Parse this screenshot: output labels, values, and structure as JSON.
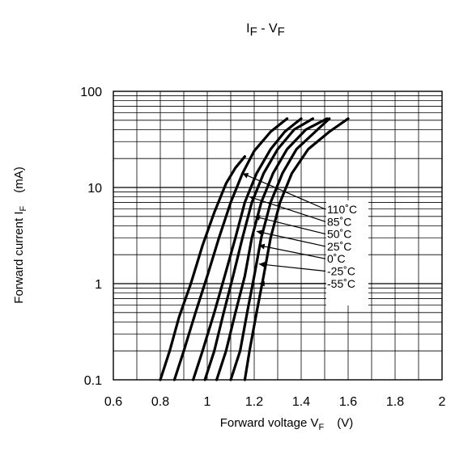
{
  "chart_data": {
    "type": "line",
    "title": {
      "main": "I",
      "main_sub": "F",
      "sep": " - V",
      "sep_sub": "F"
    },
    "xlabel": {
      "main": "Forward voltage   V",
      "sub": "F",
      "unit": "(V)"
    },
    "ylabel": {
      "main": "Forward current   I",
      "sub": "F",
      "unit": "(mA)"
    },
    "xlim": [
      0.6,
      2.0
    ],
    "ylim": [
      0.1,
      100
    ],
    "yscale": "log",
    "grid": true,
    "x_ticks": [
      "0.6",
      "0.8",
      "1",
      "1.2",
      "1.4",
      "1.6",
      "1.8",
      "2"
    ],
    "y_ticks": [
      "0.1",
      "1",
      "10",
      "100"
    ],
    "series": [
      {
        "name": "110˚C",
        "points": [
          [
            0.8,
            0.1
          ],
          [
            0.84,
            0.2
          ],
          [
            0.88,
            0.45
          ],
          [
            0.93,
            1
          ],
          [
            0.98,
            2.5
          ],
          [
            1.03,
            5.5
          ],
          [
            1.08,
            11
          ],
          [
            1.12,
            16
          ],
          [
            1.16,
            21
          ]
        ]
      },
      {
        "name": "85˚C",
        "points": [
          [
            0.86,
            0.1
          ],
          [
            0.9,
            0.2
          ],
          [
            0.95,
            0.5
          ],
          [
            1.0,
            1.2
          ],
          [
            1.05,
            3
          ],
          [
            1.1,
            7
          ],
          [
            1.15,
            14
          ],
          [
            1.2,
            24
          ],
          [
            1.27,
            38
          ],
          [
            1.34,
            52
          ]
        ]
      },
      {
        "name": "50˚C",
        "points": [
          [
            0.94,
            0.1
          ],
          [
            0.98,
            0.2
          ],
          [
            1.03,
            0.5
          ],
          [
            1.07,
            1.1
          ],
          [
            1.12,
            3
          ],
          [
            1.16,
            7
          ],
          [
            1.21,
            14
          ],
          [
            1.27,
            25
          ],
          [
            1.33,
            38
          ],
          [
            1.4,
            52
          ]
        ]
      },
      {
        "name": "25˚C",
        "points": [
          [
            0.99,
            0.1
          ],
          [
            1.03,
            0.2
          ],
          [
            1.07,
            0.5
          ],
          [
            1.11,
            1.2
          ],
          [
            1.15,
            3
          ],
          [
            1.19,
            7
          ],
          [
            1.24,
            14
          ],
          [
            1.3,
            25
          ],
          [
            1.37,
            40
          ],
          [
            1.45,
            52
          ]
        ]
      },
      {
        "name": "0˚C",
        "points": [
          [
            1.04,
            0.1
          ],
          [
            1.08,
            0.2
          ],
          [
            1.12,
            0.5
          ],
          [
            1.16,
            1.2
          ],
          [
            1.19,
            3
          ],
          [
            1.23,
            7
          ],
          [
            1.28,
            14
          ],
          [
            1.34,
            25
          ],
          [
            1.42,
            40
          ],
          [
            1.51,
            52
          ]
        ]
      },
      {
        "name": "-25˚C",
        "points": [
          [
            1.1,
            0.1
          ],
          [
            1.14,
            0.2
          ],
          [
            1.17,
            0.5
          ],
          [
            1.2,
            1.2
          ],
          [
            1.23,
            3
          ],
          [
            1.27,
            7
          ],
          [
            1.32,
            14
          ],
          [
            1.38,
            25
          ],
          [
            1.46,
            38
          ],
          [
            1.52,
            52
          ]
        ]
      },
      {
        "name": "-55˚C",
        "points": [
          [
            1.16,
            0.1
          ],
          [
            1.18,
            0.2
          ],
          [
            1.21,
            0.5
          ],
          [
            1.24,
            1.2
          ],
          [
            1.27,
            3
          ],
          [
            1.31,
            7
          ],
          [
            1.36,
            14
          ],
          [
            1.43,
            25
          ],
          [
            1.52,
            38
          ],
          [
            1.6,
            52
          ]
        ]
      }
    ],
    "annotations": [
      {
        "label": "110˚C",
        "target": [
          1.15,
          14
        ]
      },
      {
        "label": "85˚C",
        "target": [
          1.18,
          8
        ]
      },
      {
        "label": "50˚C",
        "target": [
          1.2,
          5
        ]
      },
      {
        "label": "25˚C",
        "target": [
          1.21,
          3.5
        ]
      },
      {
        "label": "0˚C",
        "target": [
          1.22,
          2.5
        ]
      },
      {
        "label": "-25˚C",
        "target": [
          1.22,
          1.6
        ]
      },
      {
        "label": "-55˚C",
        "target": [
          1.22,
          1.0
        ]
      }
    ]
  }
}
